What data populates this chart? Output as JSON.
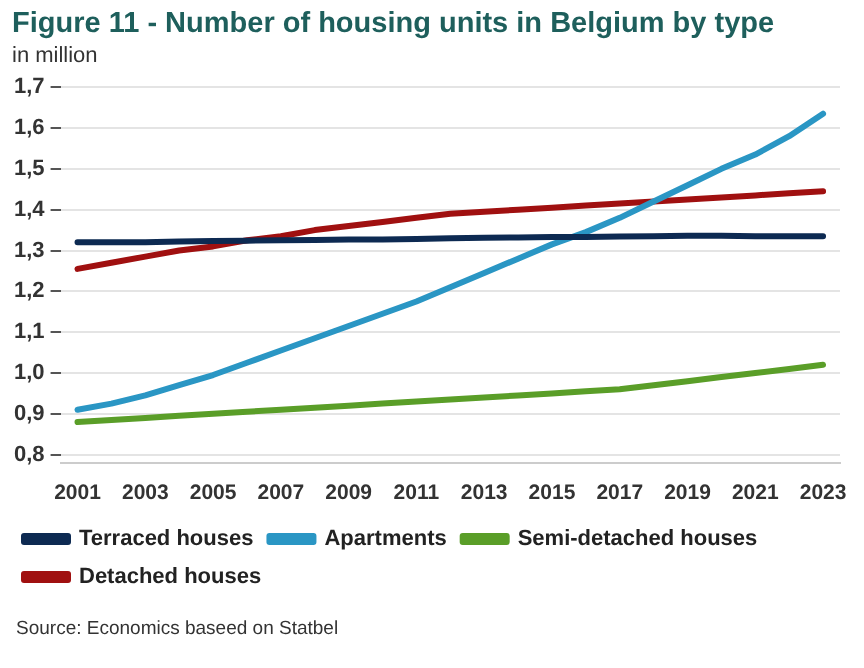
{
  "chart_data": {
    "type": "line",
    "title": "Figure 11 - Number of housing units in Belgium by type",
    "subtitle": "in million",
    "categories": [
      "2001",
      null,
      "2003",
      null,
      "2005",
      null,
      "2007",
      null,
      "2009",
      null,
      "2011",
      null,
      "2013",
      null,
      "2015",
      null,
      "2017",
      null,
      "2019",
      null,
      "2021",
      null,
      "2023"
    ],
    "series": [
      {
        "name": "Terraced houses",
        "color": "#0d2a52",
        "values": [
          1.32,
          1.32,
          1.32,
          1.322,
          1.323,
          1.324,
          1.325,
          1.326,
          1.327,
          1.327,
          1.328,
          1.33,
          1.331,
          1.332,
          1.333,
          1.333,
          1.334,
          1.335,
          1.336,
          1.336,
          1.335,
          1.335,
          1.335
        ]
      },
      {
        "name": "Apartments",
        "color": "#2a96c4",
        "values": [
          0.91,
          0.925,
          0.945,
          0.97,
          0.995,
          1.025,
          1.055,
          1.085,
          1.115,
          1.145,
          1.175,
          1.21,
          1.245,
          1.28,
          1.315,
          1.345,
          1.38,
          1.42,
          1.46,
          1.5,
          1.535,
          1.58,
          1.635
        ]
      },
      {
        "name": "Semi-detached houses",
        "color": "#5a9e28",
        "values": [
          0.88,
          0.885,
          0.89,
          0.895,
          0.9,
          0.905,
          0.91,
          0.915,
          0.92,
          0.925,
          0.93,
          0.935,
          0.94,
          0.945,
          0.95,
          0.955,
          0.96,
          0.97,
          0.98,
          0.99,
          1.0,
          1.01,
          1.02
        ]
      },
      {
        "name": "Detached houses",
        "color": "#a01010",
        "values": [
          1.255,
          1.27,
          1.285,
          1.3,
          1.31,
          1.325,
          1.335,
          1.35,
          1.36,
          1.37,
          1.38,
          1.39,
          1.395,
          1.4,
          1.405,
          1.41,
          1.415,
          1.42,
          1.425,
          1.43,
          1.435,
          1.44,
          1.445
        ]
      }
    ],
    "ylim": [
      0.78,
      1.7
    ],
    "yticks": [
      {
        "value": 0.8,
        "label": "0,8"
      },
      {
        "value": 0.9,
        "label": "0,9"
      },
      {
        "value": 1.0,
        "label": "1,0"
      },
      {
        "value": 1.1,
        "label": "1,1"
      },
      {
        "value": 1.2,
        "label": "1,2"
      },
      {
        "value": 1.3,
        "label": "1,3"
      },
      {
        "value": 1.4,
        "label": "1,4"
      },
      {
        "value": 1.5,
        "label": "1,5"
      },
      {
        "value": 1.6,
        "label": "1,6"
      },
      {
        "value": 1.7,
        "label": "1,7"
      }
    ],
    "grid": "y",
    "legend": "bottom",
    "marker": "none",
    "line_style": "solid",
    "annotations": [
      "Source: Economics baseed on Statbel"
    ]
  }
}
